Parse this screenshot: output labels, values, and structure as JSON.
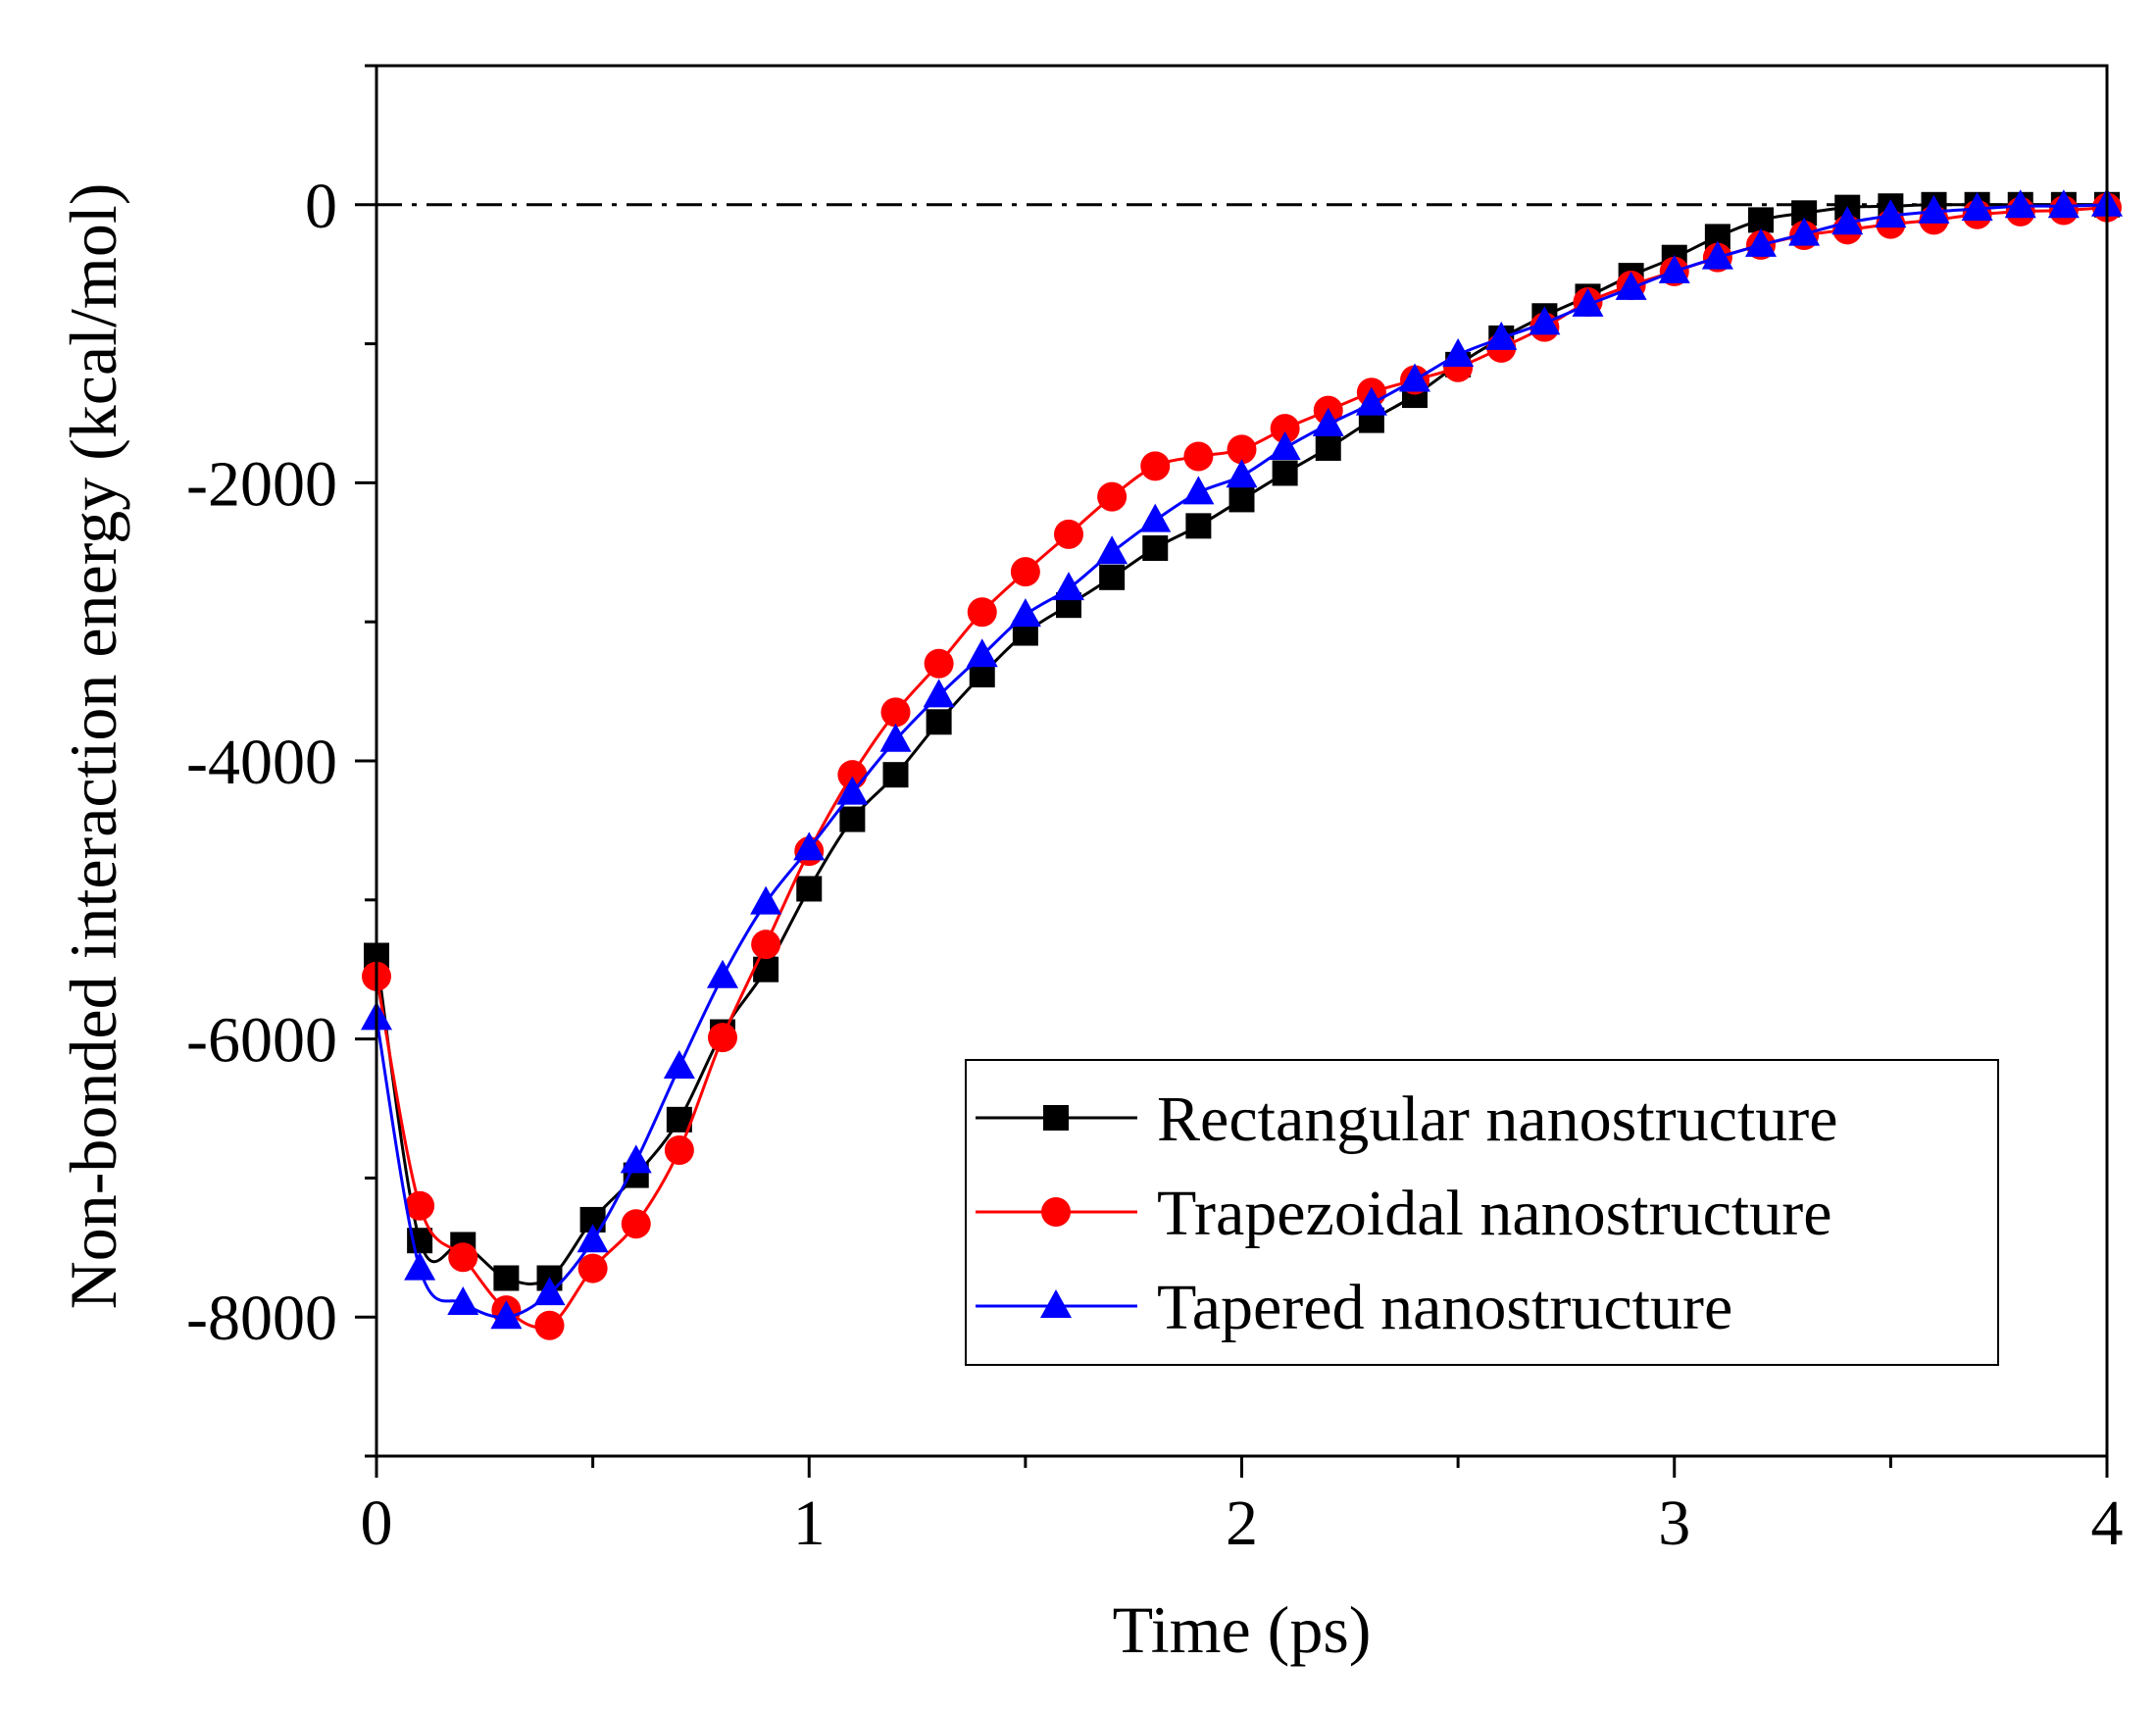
{
  "chart_data": {
    "type": "line",
    "title": "",
    "xlabel": "Time (ps)",
    "ylabel": "Non-bonded interaction energy (kcal/mol)",
    "xlim": [
      0,
      4
    ],
    "ylim": [
      -9000,
      1000
    ],
    "x_ticks": [
      0,
      1,
      2,
      3,
      4
    ],
    "x_tick_labels": [
      "0",
      "1",
      "2",
      "3",
      "4"
    ],
    "y_ticks": [
      0,
      -2000,
      -4000,
      -6000,
      -8000
    ],
    "y_tick_labels": [
      "0",
      "-2000",
      "-4000",
      "-6000",
      "-8000"
    ],
    "grid": false,
    "legend_position": "bottom-right",
    "reference_line": {
      "y": 0,
      "style": "dash-dot",
      "color": "#000000"
    },
    "x": [
      0,
      0.1,
      0.2,
      0.3,
      0.4,
      0.5,
      0.6,
      0.7,
      0.8,
      0.9,
      1.0,
      1.1,
      1.2,
      1.3,
      1.4,
      1.5,
      1.6,
      1.7,
      1.8,
      1.9,
      2.0,
      2.1,
      2.2,
      2.3,
      2.4,
      2.5,
      2.6,
      2.7,
      2.8,
      2.9,
      3.0,
      3.1,
      3.2,
      3.3,
      3.4,
      3.5,
      3.6,
      3.7,
      3.8,
      3.9,
      4.0
    ],
    "series": [
      {
        "name": "Rectangular nanostructure",
        "color": "#000000",
        "marker": "square",
        "values": [
          -5400,
          -7450,
          -7480,
          -7720,
          -7720,
          -7300,
          -6980,
          -6580,
          -5950,
          -5500,
          -4920,
          -4420,
          -4100,
          -3720,
          -3380,
          -3080,
          -2880,
          -2680,
          -2470,
          -2310,
          -2120,
          -1930,
          -1750,
          -1550,
          -1370,
          -1150,
          -960,
          -800,
          -660,
          -510,
          -380,
          -230,
          -110,
          -60,
          -20,
          -10,
          0,
          0,
          0,
          0,
          0
        ]
      },
      {
        "name": "Trapezoidal nanostructure",
        "color": "#ff0000",
        "marker": "circle",
        "values": [
          -5550,
          -7200,
          -7570,
          -7950,
          -8060,
          -7650,
          -7330,
          -6800,
          -5990,
          -5320,
          -4650,
          -4100,
          -3650,
          -3300,
          -2930,
          -2640,
          -2370,
          -2100,
          -1880,
          -1810,
          -1760,
          -1610,
          -1480,
          -1350,
          -1260,
          -1170,
          -1030,
          -880,
          -700,
          -580,
          -480,
          -380,
          -290,
          -220,
          -180,
          -140,
          -110,
          -70,
          -50,
          -40,
          -20
        ]
      },
      {
        "name": "Tapered nanostructure",
        "color": "#0000ff",
        "marker": "triangle",
        "values": [
          -5850,
          -7650,
          -7900,
          -8000,
          -7830,
          -7450,
          -6880,
          -6200,
          -5550,
          -5020,
          -4630,
          -4230,
          -3850,
          -3530,
          -3240,
          -2950,
          -2760,
          -2500,
          -2270,
          -2070,
          -1950,
          -1750,
          -1580,
          -1430,
          -1260,
          -1080,
          -960,
          -850,
          -720,
          -600,
          -480,
          -380,
          -290,
          -210,
          -130,
          -80,
          -50,
          -30,
          -10,
          -10,
          0
        ]
      }
    ]
  }
}
